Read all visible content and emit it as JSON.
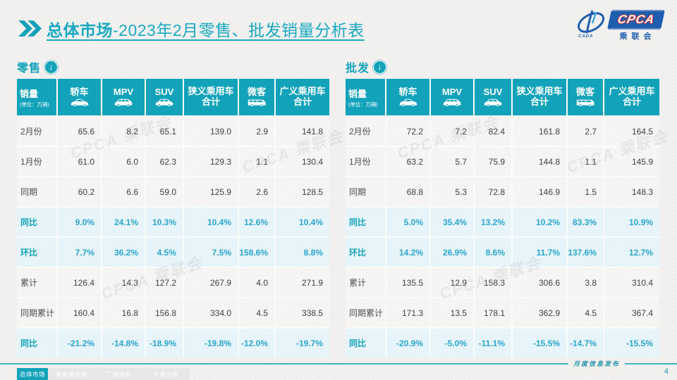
{
  "header": {
    "title_bold": "总体市场",
    "title_rest": "-2023年2月零售、批发销量分析表",
    "logo": {
      "cpca": "CPCA",
      "subtitle": "乘联会",
      "swoosh_text": "CADA"
    }
  },
  "colors": {
    "teal": "#12a3ba",
    "percent_blue": "#2ba6cf",
    "highlight_bg": "#e7f4f9",
    "logo_blue": "#1d5fae"
  },
  "watermark": "CPCA 乘联会",
  "tables": {
    "first_col_header": "销量",
    "unit_note": "(单位：万辆)",
    "columns": [
      {
        "id": "sedan",
        "label": "轿车",
        "icon": "sedan-icon"
      },
      {
        "id": "mpv",
        "label": "MPV",
        "icon": "mpv-icon"
      },
      {
        "id": "suv",
        "label": "SUV",
        "icon": "suv-icon"
      },
      {
        "id": "narrow-total",
        "label": "狭义乘用车\n合计"
      },
      {
        "id": "minivan",
        "label": "微客",
        "icon": "van-icon"
      },
      {
        "id": "broad-total",
        "label": "广义乘用车\n合计"
      }
    ]
  },
  "retail": {
    "label": "零售",
    "rows": [
      {
        "label": "2月份",
        "type": "normal",
        "values": [
          "65.6",
          "8.2",
          "65.1",
          "139.0",
          "2.9",
          "141.8"
        ]
      },
      {
        "label": "1月份",
        "type": "normal",
        "values": [
          "61.0",
          "6.0",
          "62.3",
          "129.3",
          "1.1",
          "130.4"
        ]
      },
      {
        "label": "同期",
        "type": "normal",
        "values": [
          "60.2",
          "6.6",
          "59.0",
          "125.9",
          "2.6",
          "128.5"
        ]
      },
      {
        "label": "同比",
        "type": "highlight",
        "values": [
          "9.0%",
          "24.1%",
          "10.3%",
          "10.4%",
          "12.6%",
          "10.4%"
        ]
      },
      {
        "label": "环比",
        "type": "highlight",
        "values": [
          "7.7%",
          "36.2%",
          "4.5%",
          "7.5%",
          "158.6%",
          "8.8%"
        ]
      },
      {
        "label": "累计",
        "type": "normal",
        "values": [
          "126.4",
          "14.3",
          "127.2",
          "267.9",
          "4.0",
          "271.9"
        ]
      },
      {
        "label": "同期累计",
        "type": "normal",
        "values": [
          "160.4",
          "16.8",
          "156.8",
          "334.0",
          "4.5",
          "338.5"
        ]
      },
      {
        "label": "同比",
        "type": "highlight",
        "values": [
          "-21.2%",
          "-14.8%",
          "-18.9%",
          "-19.8%",
          "-12.0%",
          "-19.7%"
        ]
      }
    ]
  },
  "wholesale": {
    "label": "批发",
    "rows": [
      {
        "label": "2月份",
        "type": "normal",
        "values": [
          "72.2",
          "7.2",
          "82.4",
          "161.8",
          "2.7",
          "164.5"
        ]
      },
      {
        "label": "1月份",
        "type": "normal",
        "values": [
          "63.2",
          "5.7",
          "75.9",
          "144.8",
          "1.1",
          "145.9"
        ]
      },
      {
        "label": "同期",
        "type": "normal",
        "values": [
          "68.8",
          "5.3",
          "72.8",
          "146.9",
          "1.5",
          "148.3"
        ]
      },
      {
        "label": "同比",
        "type": "highlight",
        "values": [
          "5.0%",
          "35.4%",
          "13.2%",
          "10.2%",
          "83.3%",
          "10.9%"
        ]
      },
      {
        "label": "环比",
        "type": "highlight",
        "values": [
          "14.2%",
          "26.9%",
          "8.6%",
          "11.7%",
          "137.6%",
          "12.7%"
        ]
      },
      {
        "label": "累计",
        "type": "normal",
        "values": [
          "135.5",
          "12.9",
          "158.3",
          "306.6",
          "3.8",
          "310.4"
        ]
      },
      {
        "label": "同期累计",
        "type": "normal",
        "values": [
          "171.3",
          "13.5",
          "178.1",
          "362.9",
          "4.5",
          "367.4"
        ]
      },
      {
        "label": "同比",
        "type": "highlight",
        "values": [
          "-20.9%",
          "-5.0%",
          "-11.1%",
          "-15.5%",
          "-14.7%",
          "-15.5%"
        ]
      }
    ]
  },
  "footer": {
    "tabs": [
      {
        "label": "总体市场",
        "active": true
      },
      {
        "label": "新能源市场",
        "active": false
      },
      {
        "label": "厂商排名",
        "active": false
      },
      {
        "label": "市场分析",
        "active": false
      }
    ],
    "release_note": "月度信息发布",
    "page_number": "4"
  }
}
